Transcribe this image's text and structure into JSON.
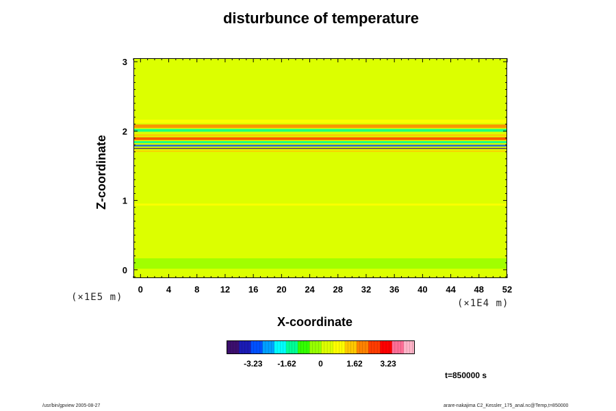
{
  "page": {
    "title": "disturbunce of temperature",
    "footer_left": "/usr/bin/gpview 2005-08-27",
    "footer_right": "arare-nakajima  C2_Kessler_175_anal.nc@Temp,t=850000",
    "time_label": "t=850000 s"
  },
  "chart_data": {
    "type": "heatmap",
    "title": "disturbunce of temperature",
    "xlabel": "X-coordinate",
    "ylabel": "Z-coordinate",
    "x_unit": "(×1E4 m)",
    "y_unit": "(×1E5 m)",
    "xlim": [
      -1,
      52
    ],
    "ylim": [
      -0.12,
      3.05
    ],
    "x_ticks": [
      0,
      4,
      8,
      12,
      16,
      20,
      24,
      28,
      32,
      36,
      40,
      44,
      48,
      52
    ],
    "x_tick_labels": [
      "0",
      "4",
      "8",
      "12",
      "16",
      "20",
      "24",
      "28",
      "32",
      "36",
      "40",
      "44",
      "48",
      "52"
    ],
    "y_ticks": [
      0,
      1,
      2,
      3
    ],
    "y_tick_labels": [
      "0",
      "1",
      "2",
      "3"
    ],
    "colorbar": {
      "min": -4.5,
      "max": 4.5,
      "ticks": [
        -3.23,
        -1.62,
        0,
        1.62,
        3.23
      ],
      "tick_labels": [
        "-3.23",
        "-1.62",
        "0",
        "1.62",
        "3.23"
      ],
      "colors": [
        "#3c0f6e",
        "#1b1bb4",
        "#0050ff",
        "#00a0ff",
        "#00ffff",
        "#00ff96",
        "#32ff00",
        "#96ff00",
        "#dcff00",
        "#ffff00",
        "#ffc800",
        "#ff8200",
        "#ff3c00",
        "#ff0000",
        "#ff6e96",
        "#ffb4c8"
      ]
    },
    "field": {
      "background_value": 0.15,
      "bands": [
        {
          "z_center": 2.15,
          "thickness": 0.05,
          "value": 0.9
        },
        {
          "z_center": 2.08,
          "thickness": 0.05,
          "value": 2.2
        },
        {
          "z_center": 2.02,
          "thickness": 0.04,
          "value": -1.3
        },
        {
          "z_center": 1.95,
          "thickness": 0.03,
          "value": 1.5
        },
        {
          "z_center": 1.9,
          "thickness": 0.04,
          "value": 2.6
        },
        {
          "z_center": 1.85,
          "thickness": 0.03,
          "value": -1.6
        },
        {
          "z_center": 1.8,
          "thickness": 0.025,
          "value": -3.0
        },
        {
          "z_center": 1.76,
          "thickness": 0.015,
          "value": -4.0
        },
        {
          "z_center": 1.72,
          "thickness": 0.02,
          "value": 1.2
        },
        {
          "z_center": 0.95,
          "thickness": 0.03,
          "value": 0.8
        },
        {
          "z_center": 0.1,
          "thickness": 0.15,
          "value": -0.5
        }
      ]
    }
  }
}
